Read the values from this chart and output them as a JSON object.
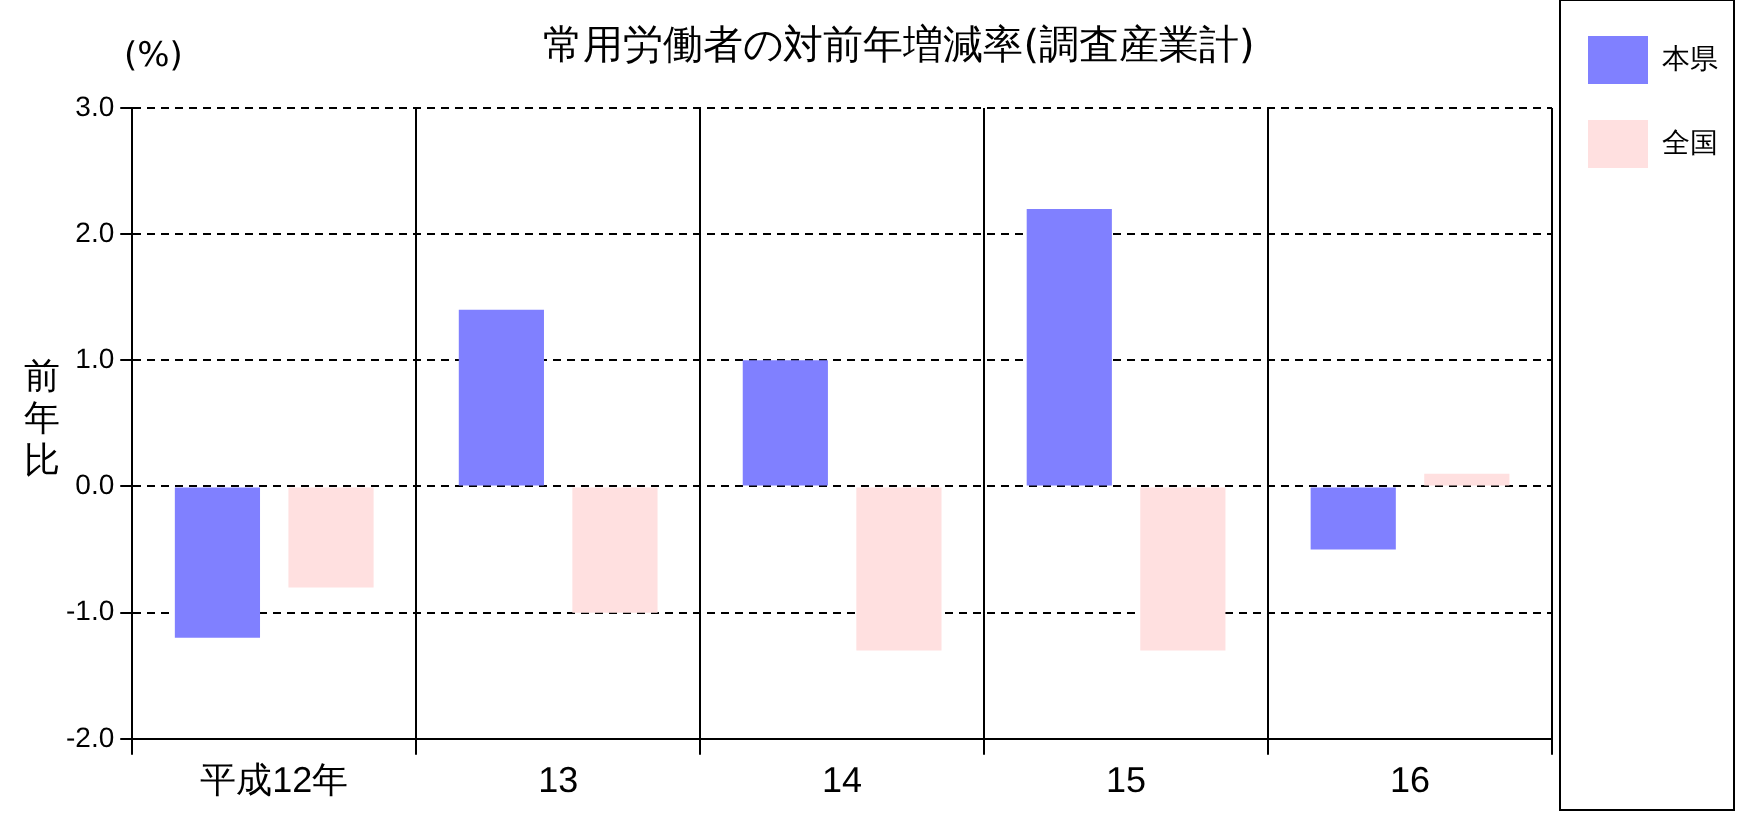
{
  "chart_data": {
    "type": "bar",
    "title": "常用労働者の対前年増減率(調査産業計)",
    "ylabel": "前年比",
    "annotations": [
      "(%)"
    ],
    "categories": [
      "平成12年",
      "13",
      "14",
      "15",
      "16"
    ],
    "series": [
      {
        "name": "本県",
        "color": "#8080ff",
        "values": [
          -1.2,
          1.4,
          1.0,
          2.2,
          -0.5
        ]
      },
      {
        "name": "全国",
        "color": "#ffe0e0",
        "values": [
          -0.8,
          -1.0,
          -1.3,
          -1.3,
          0.1
        ]
      }
    ],
    "ylim": [
      -2,
      3
    ],
    "yticks": [
      {
        "value": -2,
        "label": "-2.0"
      },
      {
        "value": -1,
        "label": "-1.0"
      },
      {
        "value": 0,
        "label": "0.0"
      },
      {
        "value": 1,
        "label": "1.0"
      },
      {
        "value": 2,
        "label": "2.0"
      },
      {
        "value": 3,
        "label": "3.0"
      }
    ],
    "grid": true,
    "legend": "top right",
    "line_style": "dashed"
  }
}
